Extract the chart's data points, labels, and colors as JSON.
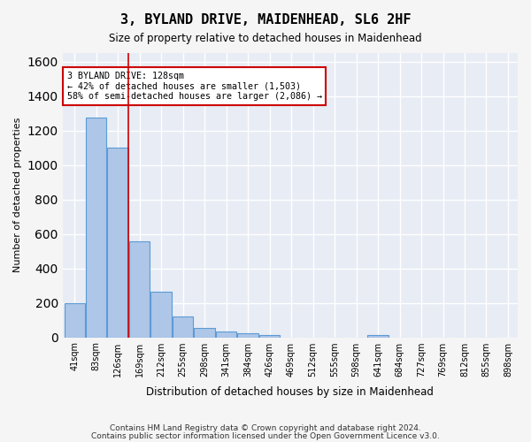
{
  "title": "3, BYLAND DRIVE, MAIDENHEAD, SL6 2HF",
  "subtitle": "Size of property relative to detached houses in Maidenhead",
  "xlabel": "Distribution of detached houses by size in Maidenhead",
  "ylabel": "Number of detached properties",
  "footer_line1": "Contains HM Land Registry data © Crown copyright and database right 2024.",
  "footer_line2": "Contains public sector information licensed under the Open Government Licence v3.0.",
  "bar_color": "#aec6e8",
  "bar_edge_color": "#5b9bd5",
  "bg_color": "#e8ecf5",
  "grid_color": "#ffffff",
  "annotation_box_color": "#cc0000",
  "annotation_line_color": "#cc0000",
  "property_size_sqm": 128,
  "property_line_bin": 2,
  "annotation_text": "3 BYLAND DRIVE: 128sqm\n← 42% of detached houses are smaller (1,503)\n58% of semi-detached houses are larger (2,086) →",
  "bin_labels": [
    "41sqm",
    "83sqm",
    "126sqm",
    "169sqm",
    "212sqm",
    "255sqm",
    "298sqm",
    "341sqm",
    "384sqm",
    "426sqm",
    "469sqm",
    "512sqm",
    "555sqm",
    "598sqm",
    "641sqm",
    "684sqm",
    "727sqm",
    "769sqm",
    "812sqm",
    "855sqm",
    "898sqm"
  ],
  "counts": [
    200,
    1275,
    1100,
    555,
    265,
    120,
    55,
    35,
    25,
    15,
    0,
    0,
    0,
    0,
    15,
    0,
    0,
    0,
    0,
    0
  ],
  "ylim": [
    0,
    1650
  ],
  "yticks": [
    0,
    200,
    400,
    600,
    800,
    1000,
    1200,
    1400,
    1600
  ]
}
